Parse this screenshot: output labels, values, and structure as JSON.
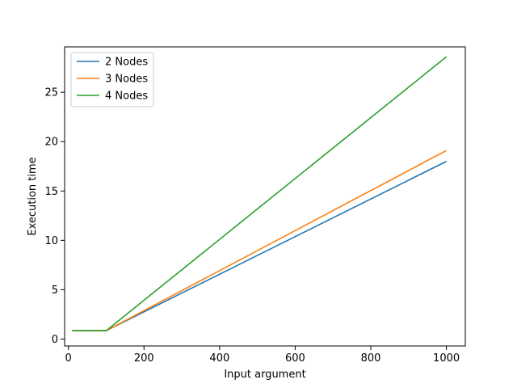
{
  "chart_data": {
    "type": "line",
    "title": "",
    "xlabel": "Input argument",
    "ylabel": "Execution time",
    "xlim": [
      -10,
      1050
    ],
    "ylim": [
      -0.7,
      29.6
    ],
    "xticks": [
      0,
      200,
      400,
      600,
      800,
      1000
    ],
    "yticks": [
      0,
      5,
      10,
      15,
      20,
      25
    ],
    "grid": false,
    "legend_position": "upper-left",
    "series": [
      {
        "name": "2 Nodes",
        "color": "#1f77b4",
        "x": [
          10,
          100,
          1000
        ],
        "y": [
          0.85,
          0.85,
          18.0
        ]
      },
      {
        "name": "3 Nodes",
        "color": "#ff7f0e",
        "x": [
          10,
          100,
          1000
        ],
        "y": [
          0.85,
          0.85,
          19.1
        ]
      },
      {
        "name": "4 Nodes",
        "color": "#2ca02c",
        "x": [
          10,
          100,
          1000
        ],
        "y": [
          0.85,
          0.85,
          28.6
        ]
      }
    ]
  }
}
